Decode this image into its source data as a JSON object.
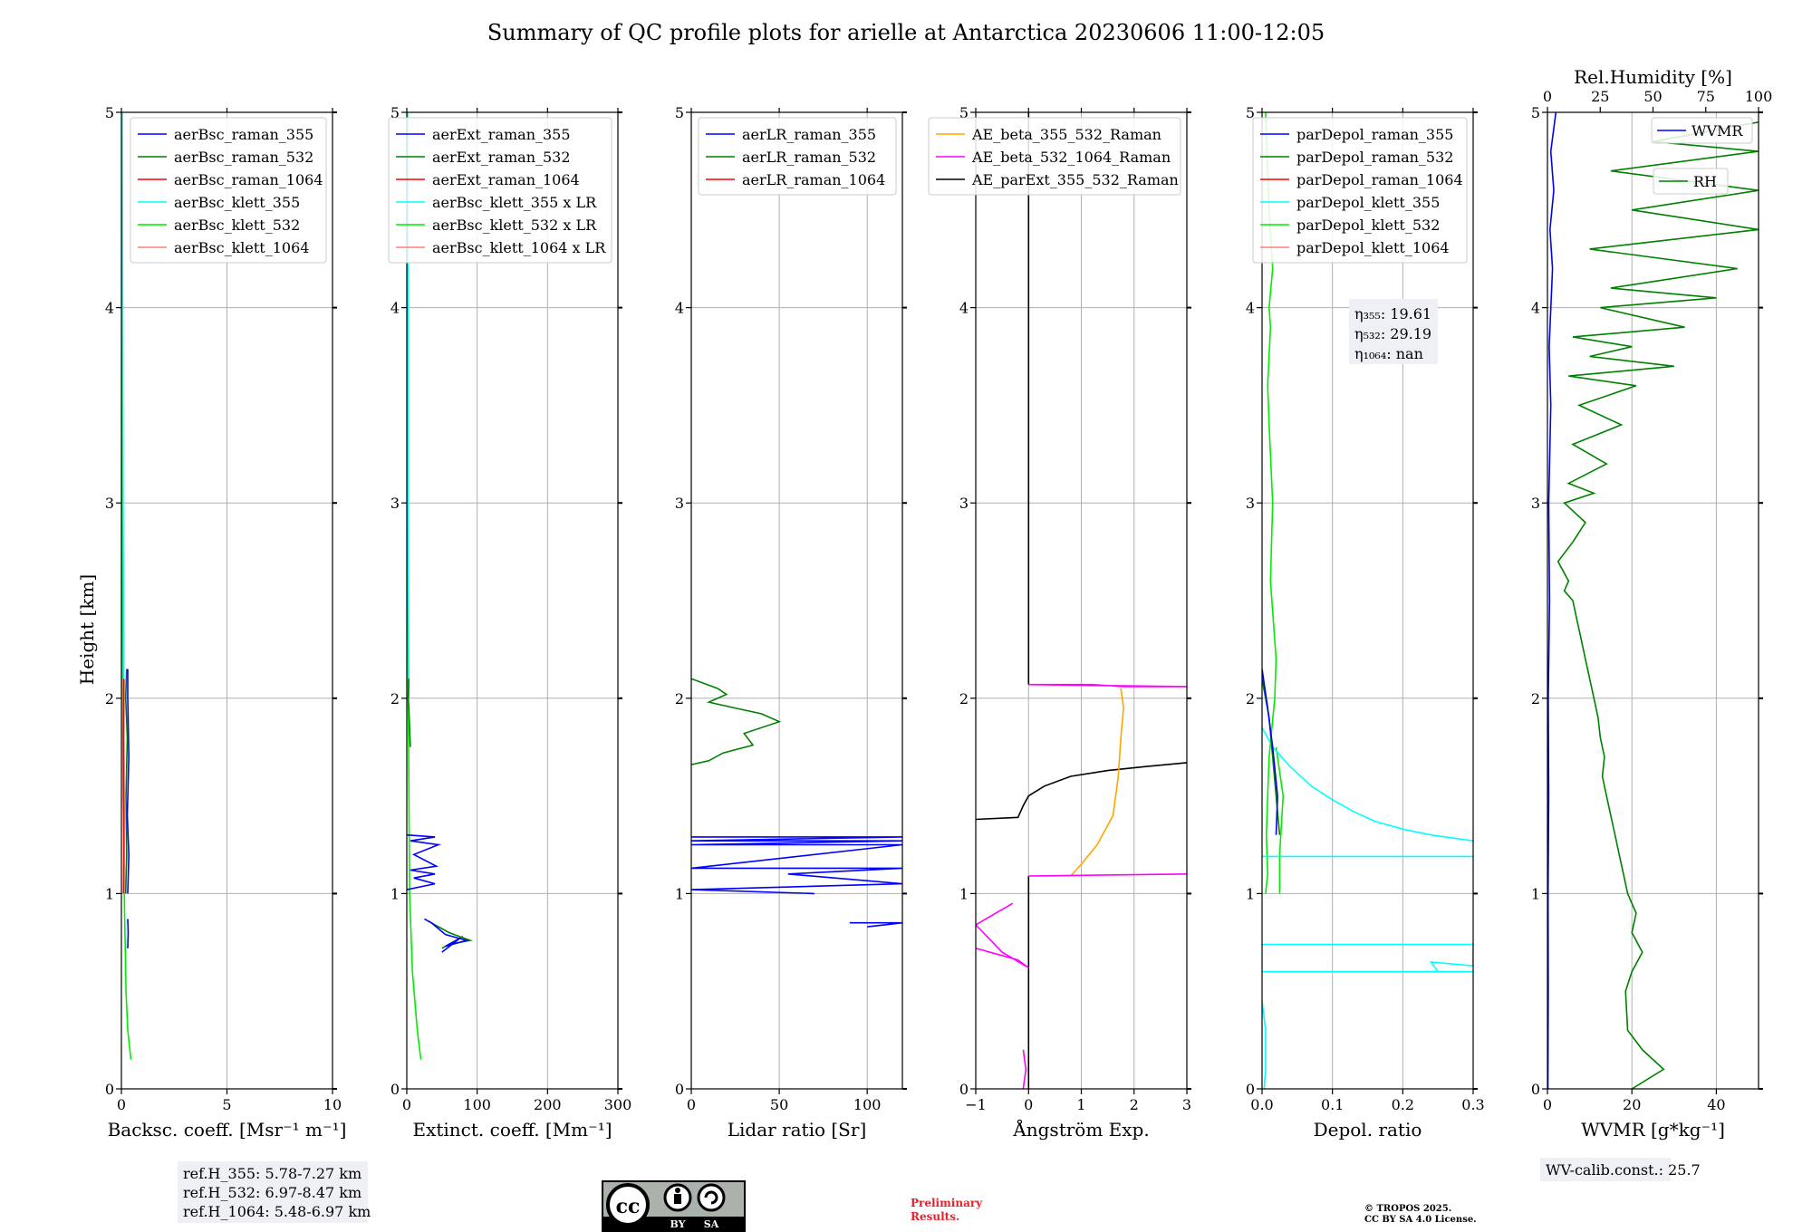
{
  "title": "Summary of QC profile plots for arielle at Antarctica 20230606 11:00-12:05",
  "shared_ylabel": "Height [km]",
  "ylim": [
    0,
    5
  ],
  "yticks": [
    0,
    1,
    2,
    3,
    4,
    5
  ],
  "chart_data": [
    {
      "type": "line",
      "xlabel": "Backsc. coeff. [Msr⁻¹ m⁻¹]",
      "xlim": [
        0,
        10
      ],
      "xticks": [
        0,
        5,
        10
      ],
      "legend": "top-right",
      "legend_entries": [
        {
          "name": "aerBsc_raman_355",
          "color": "#0000ff"
        },
        {
          "name": "aerBsc_raman_532",
          "color": "#008000"
        },
        {
          "name": "aerBsc_raman_1064",
          "color": "#ff0000"
        },
        {
          "name": "aerBsc_klett_355",
          "color": "#00ffff"
        },
        {
          "name": "aerBsc_klett_532",
          "color": "#00ee00"
        },
        {
          "name": "aerBsc_klett_1064",
          "color": "#ff8080"
        }
      ],
      "series": [
        {
          "name": "aerBsc_klett_532",
          "color": "#00ee00",
          "x": [
            0.45,
            0.3,
            0.22,
            0.15,
            0.08,
            0.05,
            0.03,
            0.02,
            0.02
          ],
          "y": [
            0.15,
            0.3,
            0.5,
            0.9,
            1.5,
            2.5,
            3.5,
            4.5,
            5.0
          ]
        },
        {
          "name": "aerBsc_klett_355",
          "color": "#00ffff",
          "x": [
            0.15,
            0.12,
            0.1,
            0.1,
            0.08,
            0.06,
            0.04
          ],
          "y": [
            1.0,
            1.5,
            2.0,
            2.5,
            3.0,
            4.0,
            5.0
          ]
        },
        {
          "name": "aerBsc_raman_532",
          "color": "#008000",
          "x": [
            0.2,
            0.25,
            0.22,
            0.28,
            0.2,
            0.25
          ],
          "y": [
            1.0,
            1.2,
            1.5,
            1.8,
            2.0,
            2.15
          ]
        },
        {
          "name": "aerBsc_raman_355",
          "color": "#0000ff",
          "x": [
            0.3,
            0.35,
            0.28,
            0.35,
            0.3,
            0.3
          ],
          "y": [
            1.0,
            1.2,
            1.4,
            1.7,
            2.0,
            2.15
          ]
        },
        {
          "name": "aerBsc_raman_1064",
          "color": "#ff0000",
          "x": [
            0.1,
            0.12,
            0.1,
            0.12
          ],
          "y": [
            1.0,
            1.4,
            1.8,
            2.1
          ]
        },
        {
          "name": "aerBsc_raman_355_low",
          "color": "#0000ff",
          "x": [
            0.3,
            0.32,
            0.3
          ],
          "y": [
            0.72,
            0.8,
            0.87
          ]
        }
      ]
    },
    {
      "type": "line",
      "xlabel": "Extinct. coeff. [Mm⁻¹]",
      "xlim": [
        0,
        300
      ],
      "xticks": [
        0,
        100,
        200,
        300
      ],
      "legend": "top-right",
      "legend_entries": [
        {
          "name": "aerExt_raman_355",
          "color": "#0000ff"
        },
        {
          "name": "aerExt_raman_532",
          "color": "#008000"
        },
        {
          "name": "aerExt_raman_1064",
          "color": "#ff0000"
        },
        {
          "name": "aerBsc_klett_355 x LR",
          "color": "#00ffff"
        },
        {
          "name": "aerBsc_klett_532 x LR",
          "color": "#00ee00"
        },
        {
          "name": "aerBsc_klett_1064 x LR",
          "color": "#ff8080"
        }
      ],
      "series": [
        {
          "name": "aerBsc_klett_532 x LR",
          "color": "#00ee00",
          "x": [
            20,
            15,
            8,
            4,
            2,
            1,
            1
          ],
          "y": [
            0.15,
            0.3,
            0.6,
            1.0,
            2.0,
            3.0,
            5.0
          ]
        },
        {
          "name": "aerBsc_klett_355 x LR",
          "color": "#00ffff",
          "x": [
            3,
            2,
            2,
            1
          ],
          "y": [
            2.0,
            3.0,
            4.0,
            5.0
          ]
        },
        {
          "name": "aerExt_raman_532",
          "color": "#008000",
          "x": [
            5,
            3,
            2,
            3
          ],
          "y": [
            1.75,
            1.95,
            2.0,
            2.1
          ]
        },
        {
          "name": "aerExt_raman_355",
          "color": "#0000ff",
          "x": [
            0,
            40,
            10,
            40,
            5,
            42,
            10,
            45,
            5,
            40,
            0
          ],
          "y": [
            1.02,
            1.05,
            1.08,
            1.1,
            1.12,
            1.14,
            1.2,
            1.25,
            1.27,
            1.29,
            1.3
          ]
        },
        {
          "name": "aerExt_raman_532_low",
          "color": "#008000",
          "x": [
            30,
            40,
            60,
            90,
            60,
            80,
            50
          ],
          "y": [
            0.86,
            0.84,
            0.8,
            0.76,
            0.74,
            0.78,
            0.72
          ]
        },
        {
          "name": "aerExt_raman_355_low",
          "color": "#0000ff",
          "x": [
            25,
            35,
            55,
            85,
            55,
            75,
            50
          ],
          "y": [
            0.87,
            0.85,
            0.79,
            0.76,
            0.73,
            0.77,
            0.7
          ]
        }
      ]
    },
    {
      "type": "line",
      "xlabel": "Lidar ratio [Sr]",
      "xlim": [
        0,
        120
      ],
      "xticks": [
        0,
        50,
        100
      ],
      "legend": "top-right",
      "legend_entries": [
        {
          "name": "aerLR_raman_355",
          "color": "#0000ff"
        },
        {
          "name": "aerLR_raman_532",
          "color": "#008000"
        },
        {
          "name": "aerLR_raman_1064",
          "color": "#ff0000"
        }
      ],
      "series": [
        {
          "name": "aerLR_raman_532",
          "color": "#008000",
          "x": [
            0,
            15,
            20,
            10,
            25,
            40,
            50,
            30,
            35,
            18,
            10,
            0
          ],
          "y": [
            2.1,
            2.05,
            2.02,
            1.98,
            1.95,
            1.92,
            1.88,
            1.82,
            1.76,
            1.72,
            1.68,
            1.66
          ]
        },
        {
          "name": "aerLR_raman_355",
          "color": "#0000ff",
          "x": [
            0,
            120,
            0,
            120,
            0,
            120,
            0,
            120,
            55,
            120,
            0,
            70
          ],
          "y": [
            1.29,
            1.29,
            1.27,
            1.27,
            1.25,
            1.25,
            1.13,
            1.13,
            1.1,
            1.05,
            1.02,
            1.0
          ]
        },
        {
          "name": "aerLR_raman_355_low",
          "color": "#0000ff",
          "x": [
            90,
            120,
            110,
            100
          ],
          "y": [
            0.85,
            0.85,
            0.84,
            0.83
          ]
        }
      ]
    },
    {
      "type": "line",
      "xlabel": "Ångström Exp.",
      "xlim": [
        -1,
        3
      ],
      "xticks": [
        -1,
        0,
        1,
        2,
        3
      ],
      "legend": "top-right",
      "legend_entries": [
        {
          "name": "AE_beta_355_532_Raman",
          "color": "#ffa500"
        },
        {
          "name": "AE_beta_532_1064_Raman",
          "color": "#ff00ff"
        },
        {
          "name": "AE_parExt_355_532_Raman",
          "color": "#000000"
        }
      ],
      "series": [
        {
          "name": "AE_parExt_355_532_Raman",
          "color": "#000000",
          "x": [
            -1,
            -0.2,
            -0.1,
            0.0,
            0.3,
            0.8,
            1.5,
            2.2,
            3.0
          ],
          "y": [
            1.38,
            1.39,
            1.45,
            1.5,
            1.55,
            1.6,
            1.63,
            1.65,
            1.67
          ]
        },
        {
          "name": "AE_parExt_355_532_Raman_upper",
          "color": "#000000",
          "x": [
            0,
            0,
            0,
            0
          ],
          "y": [
            2.07,
            3.0,
            4.0,
            5.0
          ]
        },
        {
          "name": "AE_parExt_355_532_Raman_lower",
          "color": "#000000",
          "x": [
            0,
            0,
            0
          ],
          "y": [
            0.0,
            0.6,
            1.09
          ]
        },
        {
          "name": "AE_beta_355_532_Raman",
          "color": "#ffa500",
          "x": [
            0.8,
            1.0,
            1.3,
            1.6,
            1.7,
            1.75,
            1.8,
            1.75
          ],
          "y": [
            1.09,
            1.15,
            1.25,
            1.4,
            1.6,
            1.8,
            1.95,
            2.05
          ]
        },
        {
          "name": "AE_beta_532_1064_Raman",
          "color": "#ff00ff",
          "x": [
            0,
            3,
            1.8,
            1.2,
            0
          ],
          "y": [
            2.07,
            2.06,
            2.06,
            2.07,
            2.07
          ]
        },
        {
          "name": "AE_beta_532_1064_Raman_mid",
          "color": "#ff00ff",
          "x": [
            0,
            3
          ],
          "y": [
            1.09,
            1.1
          ]
        },
        {
          "name": "AE_beta_532_1064_Raman_low",
          "color": "#ff00ff",
          "x": [
            -0.3,
            -1,
            -0.5,
            0,
            -0.2,
            -1
          ],
          "y": [
            0.95,
            0.84,
            0.7,
            0.62,
            0.66,
            0.72
          ]
        },
        {
          "name": "AE_beta_532_1064_Raman_bottom",
          "color": "#ff00ff",
          "x": [
            -0.1,
            -0.05,
            -0.1
          ],
          "y": [
            0.0,
            0.1,
            0.2
          ]
        }
      ]
    },
    {
      "type": "line",
      "xlabel": "Depol. ratio",
      "xlim": [
        0,
        0.3
      ],
      "xticks": [
        0,
        0.1,
        0.2,
        0.3
      ],
      "xticklabels": [
        "0.0",
        "0.1",
        "0.2",
        "0.3"
      ],
      "legend": "top-right",
      "legend_entries": [
        {
          "name": "parDepol_raman_355",
          "color": "#0000ff"
        },
        {
          "name": "parDepol_raman_532",
          "color": "#008000"
        },
        {
          "name": "parDepol_raman_1064",
          "color": "#ff0000"
        },
        {
          "name": "parDepol_klett_355",
          "color": "#00ffff"
        },
        {
          "name": "parDepol_klett_532",
          "color": "#00ee00"
        },
        {
          "name": "parDepol_klett_1064",
          "color": "#ff8080"
        }
      ],
      "annotation": {
        "lines": [
          "η₃₅₅: 19.61",
          "η₅₃₂: 29.19",
          "η₁₀₆₄: nan"
        ]
      },
      "series": [
        {
          "name": "parDepol_klett_532",
          "color": "#00ee00",
          "x": [
            0.005,
            0.01,
            0.015,
            0.01,
            0.012,
            0.008,
            0.01,
            0.015,
            0.012,
            0.02,
            0.018,
            0.01,
            0.008,
            0.006,
            0.008,
            0.005
          ],
          "y": [
            5.0,
            4.5,
            4.2,
            4.0,
            3.9,
            3.6,
            3.4,
            3.0,
            2.6,
            2.2,
            2.0,
            1.7,
            1.5,
            1.3,
            1.1,
            1.0
          ]
        },
        {
          "name": "parDepol_klett_532_b",
          "color": "#00ee00",
          "x": [
            0.02,
            0.03,
            0.025,
            0.025
          ],
          "y": [
            1.75,
            1.5,
            1.2,
            1.0
          ]
        },
        {
          "name": "parDepol_klett_355",
          "color": "#00ffff",
          "x": [
            0.0,
            0.015,
            0.04,
            0.07,
            0.1,
            0.13,
            0.16,
            0.2,
            0.24,
            0.3
          ],
          "y": [
            1.85,
            1.75,
            1.65,
            1.55,
            1.48,
            1.42,
            1.37,
            1.33,
            1.3,
            1.27
          ]
        },
        {
          "name": "parDepol_klett_355_b",
          "color": "#00ffff",
          "x": [
            0.0,
            0.3
          ],
          "y": [
            1.19,
            1.19
          ]
        },
        {
          "name": "parDepol_klett_355_c",
          "color": "#00ffff",
          "x": [
            0.0,
            0.3,
            0.3,
            0.24,
            0.25,
            0.3,
            0.0
          ],
          "y": [
            0.74,
            0.74,
            0.63,
            0.65,
            0.6,
            0.6,
            0.6
          ]
        },
        {
          "name": "parDepol_klett_355_d",
          "color": "#00ffff",
          "x": [
            0.0,
            0.005,
            0.005,
            0.003
          ],
          "y": [
            0.45,
            0.3,
            0.1,
            0.0
          ]
        },
        {
          "name": "parDepol_raman_532",
          "color": "#008000",
          "x": [
            0.0,
            0.01,
            0.015,
            0.02,
            0.025
          ],
          "y": [
            2.1,
            1.9,
            1.7,
            1.5,
            1.3
          ]
        },
        {
          "name": "parDepol_raman_355",
          "color": "#0000ff",
          "x": [
            0.0,
            0.008,
            0.015,
            0.022,
            0.02
          ],
          "y": [
            2.15,
            1.95,
            1.75,
            1.5,
            1.3
          ]
        }
      ]
    },
    {
      "type": "line",
      "xlabel": "WVMR [g*kg⁻¹]",
      "xlim": [
        0,
        50
      ],
      "xticks": [
        0,
        20,
        40
      ],
      "secondary_xlabel": "Rel.Humidity [%]",
      "secondary_xlim": [
        0,
        100
      ],
      "secondary_xticks": [
        0,
        25,
        50,
        75,
        100
      ],
      "legend": "top-right",
      "legend_entries": [
        {
          "name": "WVMR",
          "color": "#0000ff"
        },
        {
          "name": "RH",
          "color": "#008000"
        }
      ],
      "series": [
        {
          "name": "WVMR",
          "axis": "bottom",
          "color": "#0000ff",
          "x": [
            0.1,
            0.2,
            0.15,
            0.3,
            0.2,
            0.5,
            0.3,
            0.8,
            0.4,
            1.2,
            0.6,
            1.5,
            0.8,
            2.0
          ],
          "y": [
            0,
            0.5,
            1.0,
            1.5,
            2.0,
            2.5,
            3.0,
            3.5,
            3.8,
            4.2,
            4.4,
            4.6,
            4.8,
            5.0
          ]
        },
        {
          "name": "RH",
          "axis": "top",
          "color": "#008000",
          "x": [
            40,
            55,
            45,
            38,
            37,
            40,
            45,
            40,
            42,
            38,
            36,
            34,
            32,
            30,
            28,
            26,
            27,
            25,
            24,
            22,
            20,
            18,
            16,
            14,
            12,
            8,
            10,
            5,
            12,
            18,
            8,
            22,
            10,
            28,
            12,
            35,
            15,
            42,
            10,
            60,
            20,
            40,
            12,
            65,
            25,
            80,
            30,
            90,
            20,
            100,
            40,
            100,
            30,
            100,
            50,
            100
          ],
          "y": [
            0.0,
            0.1,
            0.2,
            0.3,
            0.5,
            0.6,
            0.7,
            0.8,
            0.9,
            1.0,
            1.1,
            1.2,
            1.3,
            1.4,
            1.5,
            1.6,
            1.7,
            1.8,
            1.9,
            2.0,
            2.1,
            2.2,
            2.3,
            2.4,
            2.5,
            2.55,
            2.6,
            2.7,
            2.8,
            2.9,
            3.0,
            3.05,
            3.1,
            3.2,
            3.3,
            3.4,
            3.5,
            3.6,
            3.65,
            3.7,
            3.75,
            3.8,
            3.85,
            3.9,
            4.0,
            4.05,
            4.1,
            4.2,
            4.3,
            4.4,
            4.5,
            4.6,
            4.7,
            4.8,
            4.85,
            4.95
          ]
        }
      ]
    }
  ],
  "notes": {
    "ref_heights": [
      "ref.H_355: 5.78-7.27 km",
      "ref.H_532: 6.97-8.47 km",
      "ref.H_1064: 5.48-6.97 km"
    ],
    "wv_calib": "WV-calib.const.: 25.7",
    "preliminary": [
      "Preliminary",
      "Results."
    ],
    "copyright": [
      "© TROPOS 2025.",
      "CC BY SA 4.0 License."
    ],
    "license_badge": {
      "by": "BY",
      "sa": "SA"
    }
  }
}
